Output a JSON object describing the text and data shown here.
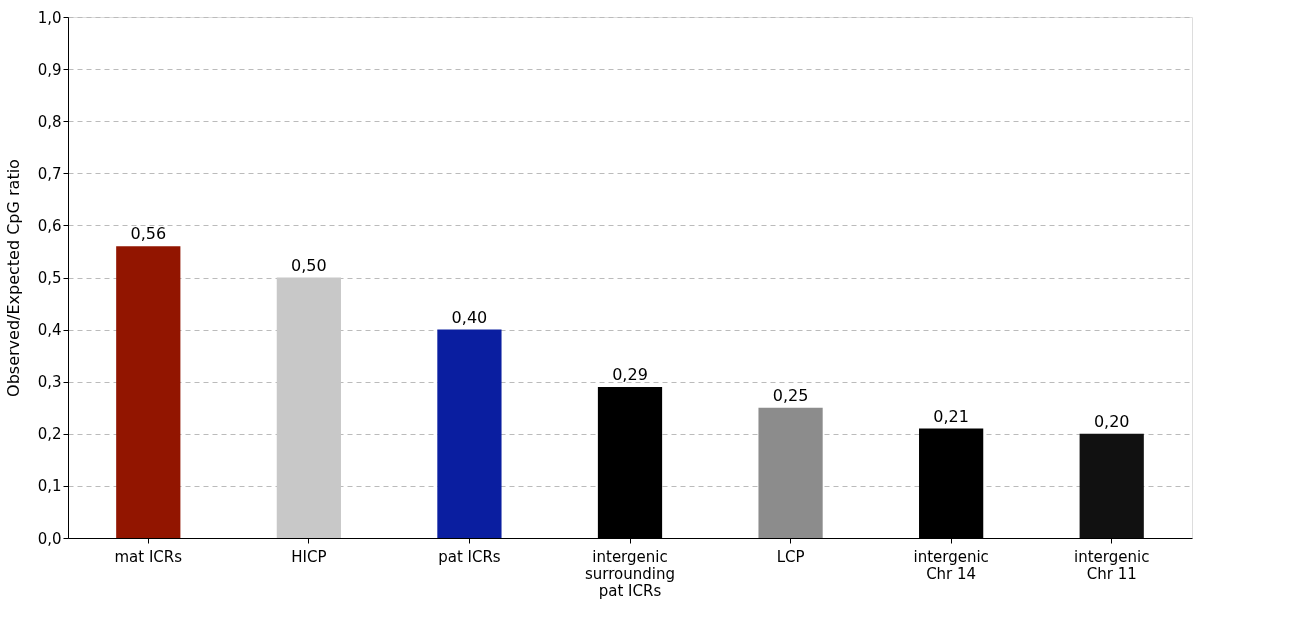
{
  "chart_data": {
    "type": "bar",
    "ylabel": "Observed/Expected CpG ratio",
    "categories": [
      "mat ICRs",
      "HICP",
      "pat ICRs",
      "intergenic\nsurrounding\npat ICRs",
      "LCP",
      "intergenic\nChr 14",
      "intergenic\nChr 11"
    ],
    "values": [
      0.56,
      0.5,
      0.4,
      0.29,
      0.25,
      0.21,
      0.2
    ],
    "value_labels": [
      "0,56",
      "0,50",
      "0,40",
      "0,29",
      "0,25",
      "0,21",
      "0,20"
    ],
    "colors": [
      "#921500",
      "#c8c8c8",
      "#0a1ea0",
      "#000000",
      "#8c8c8c",
      "#000000",
      "#111111"
    ],
    "ylim": [
      0,
      1
    ],
    "yticks": [
      {
        "value": 0,
        "label": "0,0"
      },
      {
        "value": 0.1,
        "label": "0,1"
      },
      {
        "value": 0.2,
        "label": "0,2"
      },
      {
        "value": 0.3,
        "label": "0,3"
      },
      {
        "value": 0.4,
        "label": "0,4"
      },
      {
        "value": 0.5,
        "label": "0,5"
      },
      {
        "value": 0.6,
        "label": "0,6"
      },
      {
        "value": 0.7,
        "label": "0,7"
      },
      {
        "value": 0.8,
        "label": "0,8"
      },
      {
        "value": 0.9,
        "label": "0,9"
      },
      {
        "value": 1,
        "label": "1,0"
      }
    ],
    "grid": "y",
    "legend": false
  }
}
